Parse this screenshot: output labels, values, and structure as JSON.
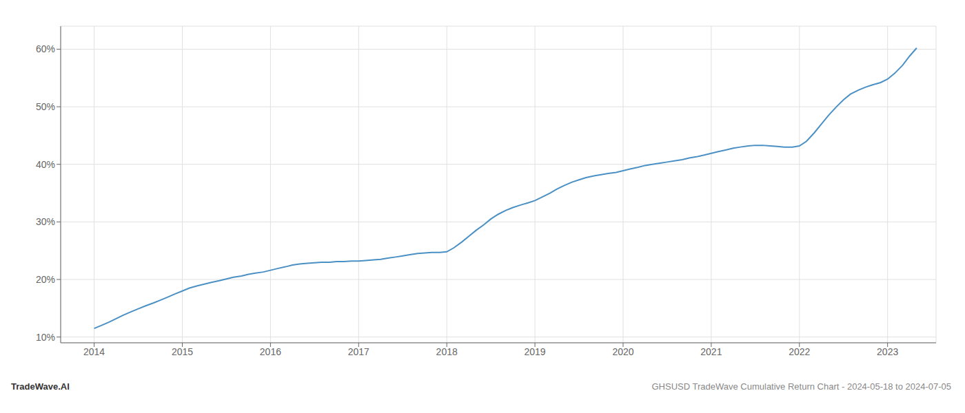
{
  "chart_data": {
    "type": "line",
    "title": "GHSUSD TradeWave Cumulative Return Chart - 2024-05-18 to 2024-07-05",
    "annotations": [
      "TradeWave.AI"
    ],
    "color": "#4a90c4",
    "grid": true,
    "x": [
      2014.0,
      2014.08,
      2014.17,
      2014.25,
      2014.33,
      2014.42,
      2014.5,
      2014.58,
      2014.67,
      2014.75,
      2014.83,
      2014.92,
      2015.0,
      2015.08,
      2015.17,
      2015.25,
      2015.33,
      2015.42,
      2015.5,
      2015.58,
      2015.67,
      2015.75,
      2015.83,
      2015.92,
      2016.0,
      2016.08,
      2016.17,
      2016.25,
      2016.33,
      2016.42,
      2016.5,
      2016.58,
      2016.67,
      2016.75,
      2016.83,
      2016.92,
      2017.0,
      2017.08,
      2017.17,
      2017.25,
      2017.33,
      2017.42,
      2017.5,
      2017.58,
      2017.67,
      2017.75,
      2017.83,
      2017.92,
      2018.0,
      2018.08,
      2018.17,
      2018.25,
      2018.33,
      2018.42,
      2018.5,
      2018.58,
      2018.67,
      2018.75,
      2018.83,
      2018.92,
      2019.0,
      2019.08,
      2019.17,
      2019.25,
      2019.33,
      2019.42,
      2019.5,
      2019.58,
      2019.67,
      2019.75,
      2019.83,
      2019.92,
      2020.0,
      2020.08,
      2020.17,
      2020.25,
      2020.33,
      2020.42,
      2020.5,
      2020.58,
      2020.67,
      2020.75,
      2020.83,
      2020.92,
      2021.0,
      2021.08,
      2021.17,
      2021.25,
      2021.33,
      2021.42,
      2021.5,
      2021.58,
      2021.67,
      2021.75,
      2021.83,
      2021.92,
      2022.0,
      2022.08,
      2022.17,
      2022.25,
      2022.33,
      2022.42,
      2022.5,
      2022.58,
      2022.67,
      2022.75,
      2022.83,
      2022.92,
      2023.0,
      2023.08,
      2023.17,
      2023.25,
      2023.33
    ],
    "values": [
      11.5,
      12.0,
      12.6,
      13.2,
      13.8,
      14.4,
      14.9,
      15.4,
      15.9,
      16.4,
      16.9,
      17.5,
      18.0,
      18.5,
      18.9,
      19.2,
      19.5,
      19.8,
      20.1,
      20.4,
      20.6,
      20.9,
      21.1,
      21.3,
      21.6,
      21.9,
      22.2,
      22.5,
      22.7,
      22.8,
      22.9,
      23.0,
      23.0,
      23.1,
      23.1,
      23.2,
      23.2,
      23.3,
      23.4,
      23.5,
      23.7,
      23.9,
      24.1,
      24.3,
      24.5,
      24.6,
      24.7,
      24.7,
      24.8,
      25.5,
      26.5,
      27.5,
      28.5,
      29.5,
      30.5,
      31.3,
      32.0,
      32.5,
      32.9,
      33.3,
      33.7,
      34.3,
      35.0,
      35.7,
      36.3,
      36.9,
      37.3,
      37.7,
      38.0,
      38.2,
      38.4,
      38.6,
      38.9,
      39.2,
      39.5,
      39.8,
      40.0,
      40.2,
      40.4,
      40.6,
      40.8,
      41.1,
      41.3,
      41.6,
      41.9,
      42.2,
      42.5,
      42.8,
      43.0,
      43.2,
      43.3,
      43.3,
      43.2,
      43.1,
      43.0,
      43.0,
      43.2,
      44.0,
      45.5,
      47.0,
      48.5,
      50.0,
      51.2,
      52.2,
      52.9,
      53.4,
      53.8,
      54.2,
      54.8,
      55.8,
      57.2,
      58.8,
      60.2
    ],
    "xlim": [
      2013.62,
      2023.55
    ],
    "xticks": [
      2014,
      2015,
      2016,
      2017,
      2018,
      2019,
      2020,
      2021,
      2022,
      2023
    ],
    "ylim": [
      9,
      64
    ],
    "yticks": [
      {
        "value": 10,
        "label": "10%"
      },
      {
        "value": 20,
        "label": "20%"
      },
      {
        "value": 30,
        "label": "30%"
      },
      {
        "value": 40,
        "label": "40%"
      },
      {
        "value": 50,
        "label": "50%"
      },
      {
        "value": 60,
        "label": "60%"
      }
    ]
  }
}
